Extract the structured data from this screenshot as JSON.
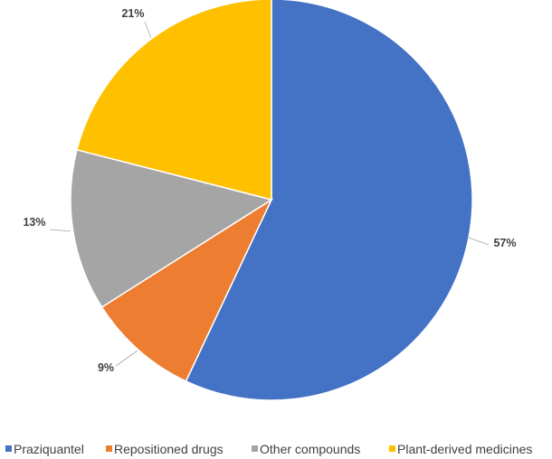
{
  "chart_data": {
    "type": "pie",
    "title": "",
    "categories": [
      "Praziquantel",
      "Repositioned drugs",
      "Other compounds",
      "Plant-derived medicines"
    ],
    "values": [
      57,
      9,
      13,
      21
    ],
    "labels": [
      "57%",
      "9%",
      "13%",
      "21%"
    ],
    "colors": [
      "#4472C4",
      "#ED7D31",
      "#A5A5A5",
      "#FFC000"
    ],
    "legend_position": "bottom",
    "start_angle": "top",
    "direction": "clockwise"
  }
}
